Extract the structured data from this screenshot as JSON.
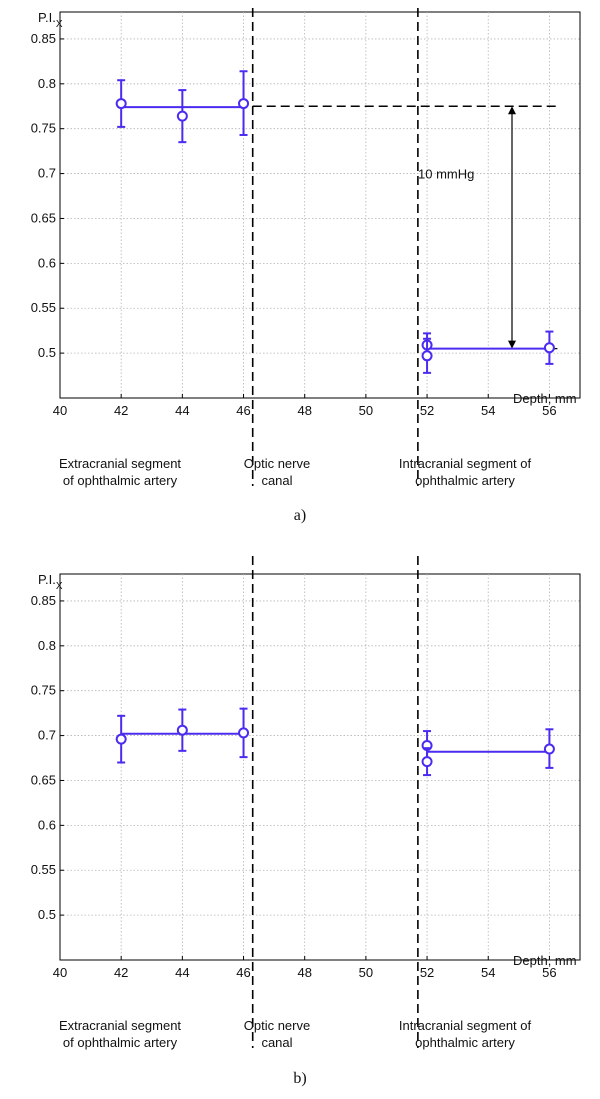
{
  "chart_data": [
    {
      "type": "scatter",
      "panel": "a)",
      "ylabel_main": "P.I.",
      "ylabel_sub": "X",
      "xlabel": "Depth, mm",
      "xlim": [
        40,
        57
      ],
      "ylim": [
        0.45,
        0.88
      ],
      "xticks": [
        40,
        42,
        44,
        46,
        48,
        50,
        52,
        54,
        56
      ],
      "yticks": [
        0.5,
        0.55,
        0.6,
        0.65,
        0.7,
        0.75,
        0.8,
        0.85
      ],
      "grid": true,
      "boundaries": [
        46.3,
        51.7
      ],
      "segments": [
        "Extracranial segment|of ophthalmic artery",
        "Optic nerve|canal",
        "Intracranial segment of|ophthalmic artery"
      ],
      "annotation": {
        "text": "10 mmHg",
        "from": 0.505,
        "to": 0.775
      },
      "series": [
        {
          "points": [
            {
              "x": 42,
              "y": 0.778,
              "lo": 0.752,
              "hi": 0.804
            },
            {
              "x": 44,
              "y": 0.764,
              "lo": 0.735,
              "hi": 0.793
            },
            {
              "x": 46,
              "y": 0.778,
              "lo": 0.743,
              "hi": 0.814
            }
          ],
          "mean": 0.774,
          "mean_x": [
            42,
            46
          ]
        },
        {
          "points": [
            {
              "x": 52,
              "y": 0.509,
              "lo": 0.496,
              "hi": 0.522
            },
            {
              "x": 52,
              "y": 0.497,
              "lo": 0.478,
              "hi": 0.516
            },
            {
              "x": 56,
              "y": 0.506,
              "lo": 0.488,
              "hi": 0.524
            }
          ],
          "mean": 0.505,
          "mean_x": [
            52,
            56
          ]
        }
      ]
    },
    {
      "type": "scatter",
      "panel": "b)",
      "ylabel_main": "P.I.",
      "ylabel_sub": "X",
      "xlabel": "Depth, mm",
      "xlim": [
        40,
        57
      ],
      "ylim": [
        0.45,
        0.88
      ],
      "xticks": [
        40,
        42,
        44,
        46,
        48,
        50,
        52,
        54,
        56
      ],
      "yticks": [
        0.5,
        0.55,
        0.6,
        0.65,
        0.7,
        0.75,
        0.8,
        0.85
      ],
      "grid": true,
      "boundaries": [
        46.3,
        51.7
      ],
      "segments": [
        "Extracranial segment|of ophthalmic artery",
        "Optic nerve|canal",
        "Intracranial segment of|ophthalmic artery"
      ],
      "series": [
        {
          "points": [
            {
              "x": 42,
              "y": 0.696,
              "lo": 0.67,
              "hi": 0.722
            },
            {
              "x": 44,
              "y": 0.706,
              "lo": 0.683,
              "hi": 0.729
            },
            {
              "x": 46,
              "y": 0.703,
              "lo": 0.676,
              "hi": 0.73
            }
          ],
          "mean": 0.702,
          "mean_x": [
            42,
            46
          ]
        },
        {
          "points": [
            {
              "x": 52,
              "y": 0.689,
              "lo": 0.673,
              "hi": 0.705
            },
            {
              "x": 52,
              "y": 0.671,
              "lo": 0.656,
              "hi": 0.686
            },
            {
              "x": 56,
              "y": 0.685,
              "lo": 0.664,
              "hi": 0.707
            }
          ],
          "mean": 0.682,
          "mean_x": [
            52,
            56
          ]
        }
      ]
    }
  ],
  "colors": {
    "series": "#4b2bf0",
    "grid": "#b4b4b4",
    "axis": "#000000"
  }
}
